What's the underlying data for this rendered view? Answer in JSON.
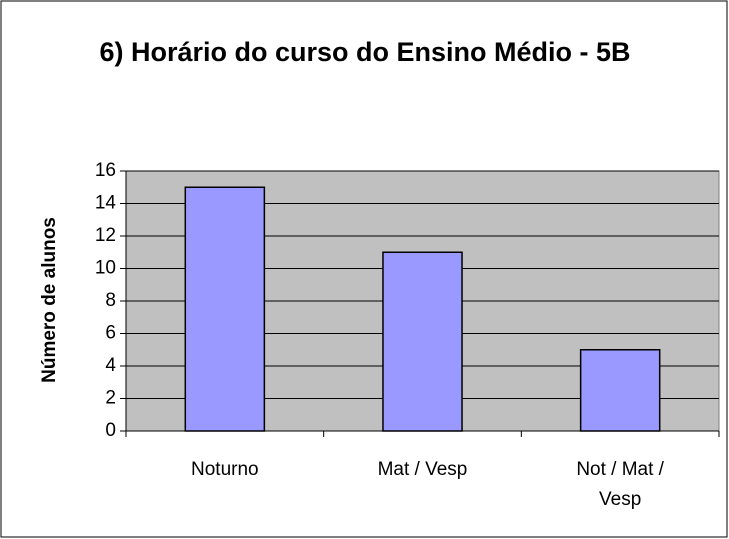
{
  "chart_data": {
    "type": "bar",
    "title": "6) Horário do curso do Ensino Médio - 5B",
    "y_label": "Número de alunos",
    "categories": [
      "Noturno",
      "Mat / Vesp",
      "Not / Mat / Vesp"
    ],
    "values": [
      15,
      11,
      5
    ],
    "color": "#9999ff",
    "ylim": [
      0,
      16
    ],
    "yticks": [
      0,
      2,
      4,
      6,
      8,
      10,
      12,
      14,
      16
    ],
    "grid": true
  }
}
